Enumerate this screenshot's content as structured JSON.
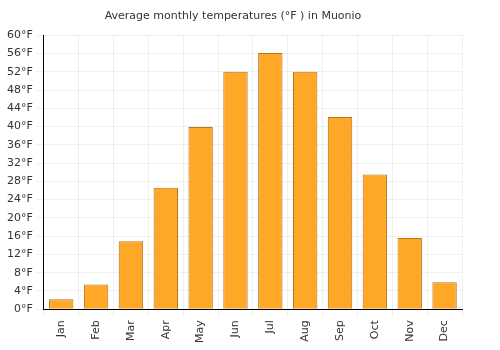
{
  "chart_data": {
    "type": "bar",
    "title": "Average monthly temperatures (°F ) in Muonio",
    "categories": [
      "Jan",
      "Feb",
      "Mar",
      "Apr",
      "May",
      "Jun",
      "Jul",
      "Aug",
      "Sep",
      "Oct",
      "Nov",
      "Dec"
    ],
    "values": [
      2.2,
      5.4,
      14.9,
      26.6,
      39.9,
      52,
      56.1,
      52,
      42.1,
      29.5,
      15.6,
      5.9
    ],
    "color": "#ffa726",
    "ylim": [
      0,
      60
    ],
    "yticks": [
      {
        "value": 0,
        "label": "0°F"
      },
      {
        "value": 4,
        "label": "4°F"
      },
      {
        "value": 8,
        "label": "8°F"
      },
      {
        "value": 12,
        "label": "12°F"
      },
      {
        "value": 16,
        "label": "16°F"
      },
      {
        "value": 20,
        "label": "20°F"
      },
      {
        "value": 24,
        "label": "24°F"
      },
      {
        "value": 28,
        "label": "28°F"
      },
      {
        "value": 32,
        "label": "32°F"
      },
      {
        "value": 36,
        "label": "36°F"
      },
      {
        "value": 40,
        "label": "40°F"
      },
      {
        "value": 44,
        "label": "44°F"
      },
      {
        "value": 48,
        "label": "48°F"
      },
      {
        "value": 52,
        "label": "52°F"
      },
      {
        "value": 56,
        "label": "56°F"
      },
      {
        "value": 60,
        "label": "60°F"
      }
    ],
    "grid": true
  }
}
